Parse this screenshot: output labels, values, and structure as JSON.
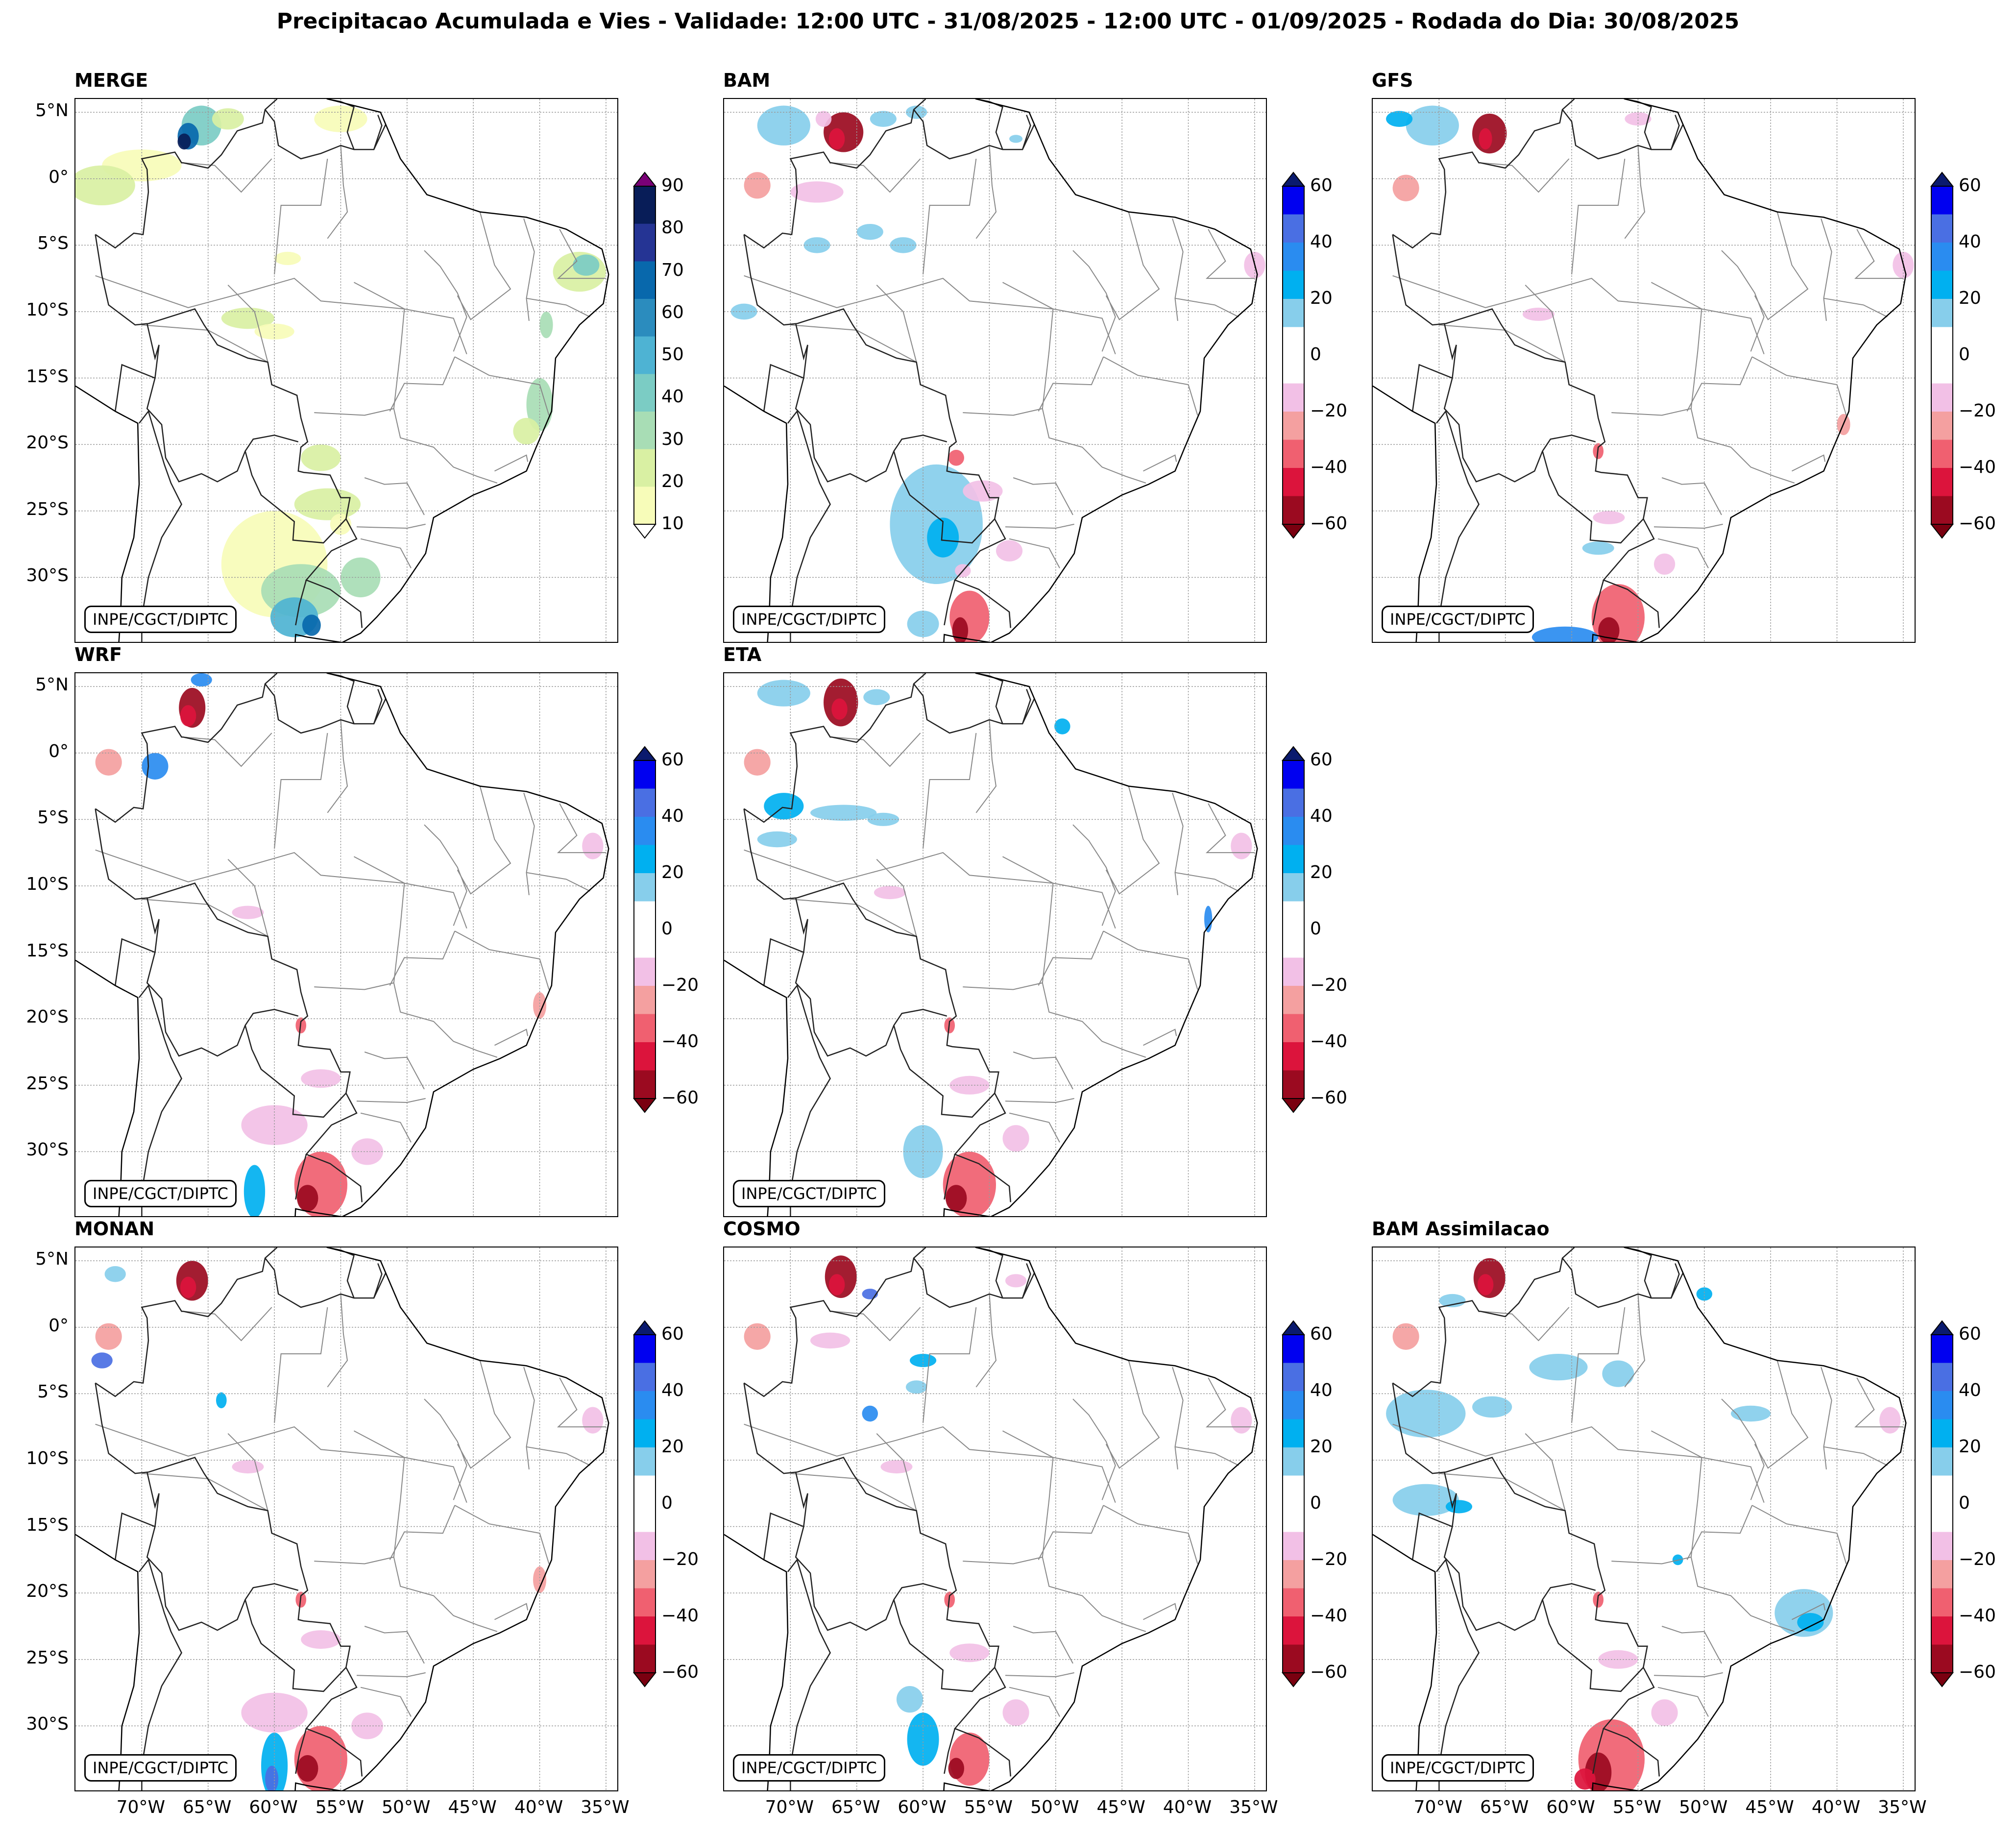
{
  "figure": {
    "title": "Precipitacao Acumulada e Vies - Validade: 12:00 UTC - 31/08/2025 - 12:00 UTC - 01/09/2025 - Rodada do Dia: 30/08/2025",
    "credit": "INPE/CGCT/DIPTC"
  },
  "axes": {
    "lat_ticks": [
      "5°N",
      "0°",
      "5°S",
      "10°S",
      "15°S",
      "20°S",
      "25°S",
      "30°S"
    ],
    "lon_ticks": [
      "70°W",
      "65°W",
      "60°W",
      "55°W",
      "50°W",
      "45°W",
      "40°W",
      "35°W"
    ]
  },
  "colorbars": {
    "precip": {
      "ticks": [
        "10",
        "20",
        "30",
        "40",
        "50",
        "60",
        "70",
        "80",
        "90"
      ],
      "colors": [
        "#f7fcb9",
        "#d9f0a3",
        "#a8ddb5",
        "#7bccc4",
        "#4eb3d3",
        "#2b8cbe",
        "#0868ac",
        "#253494",
        "#081d58"
      ],
      "over_color": "#7a0177",
      "under_color": "#ffffff"
    },
    "bias": {
      "ticks": [
        "60",
        "40",
        "20",
        "0",
        "−20",
        "−40",
        "−60"
      ],
      "colors": [
        "#0000f0",
        "#4a6fe3",
        "#2a8cf0",
        "#00b0f0",
        "#87ceeb",
        "#ffffff",
        "#ffffff",
        "#f2c0e6",
        "#f4a0a0",
        "#f06070",
        "#dc143c",
        "#9b0a20"
      ],
      "over_color": "#0a1a6e",
      "under_color": "#7a0010"
    }
  },
  "panels": [
    {
      "id": "merge",
      "title": "MERGE",
      "kind": "precip"
    },
    {
      "id": "bam",
      "title": "BAM",
      "kind": "bias"
    },
    {
      "id": "gfs",
      "title": "GFS",
      "kind": "bias"
    },
    {
      "id": "wrf",
      "title": "WRF",
      "kind": "bias"
    },
    {
      "id": "eta",
      "title": "ETA",
      "kind": "bias"
    },
    {
      "id": "monan",
      "title": "MONAN",
      "kind": "bias"
    },
    {
      "id": "cosmo",
      "title": "COSMO",
      "kind": "bias"
    },
    {
      "id": "bam_assim",
      "title": "BAM Assimilacao",
      "kind": "bias"
    }
  ]
}
